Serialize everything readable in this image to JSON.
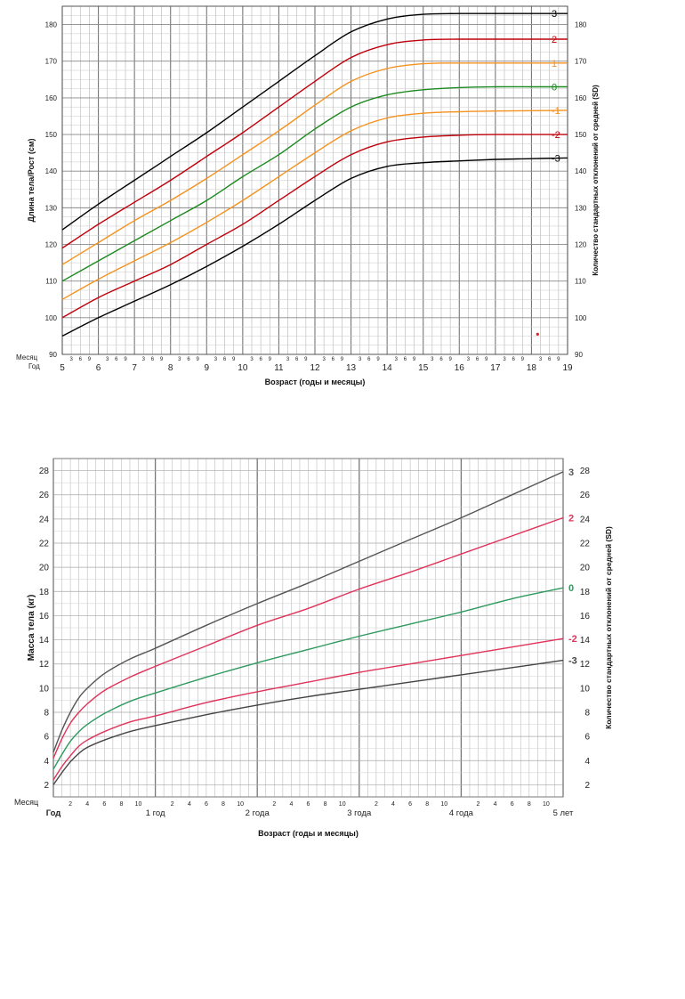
{
  "chart_data": [
    {
      "type": "line",
      "ylabel_left": "Длина тела/Рост (см)",
      "ylabel_right": "Количество стандартных отклонений от средней (SD)",
      "xlabel": "Возраст (годы и месяцы)",
      "row_label_month": "Месяц",
      "row_label_year": "Год",
      "month_ticks": [
        "3",
        "6",
        "9"
      ],
      "xlim": [
        5,
        19
      ],
      "ylim": [
        90,
        185
      ],
      "year_labels": [
        "5",
        "6",
        "7",
        "8",
        "9",
        "10",
        "11",
        "12",
        "13",
        "14",
        "15",
        "16",
        "17",
        "18",
        "19"
      ],
      "y_ticks": [
        90,
        100,
        110,
        120,
        130,
        140,
        150,
        160,
        170,
        180
      ],
      "grid": true,
      "x": [
        5,
        6,
        7,
        8,
        9,
        10,
        11,
        12,
        13,
        14,
        15,
        16,
        17,
        18,
        19
      ],
      "series": [
        {
          "name": "3",
          "color": "#000000",
          "values": [
            124,
            131,
            137.5,
            144,
            150.5,
            157.5,
            164.5,
            171.5,
            178,
            181.5,
            182.8,
            183,
            183,
            183,
            183
          ]
        },
        {
          "name": "2",
          "color": "#c0000a",
          "values": [
            119,
            125.5,
            131.5,
            137.5,
            144,
            150.5,
            157.5,
            164.5,
            171,
            174.5,
            175.8,
            176,
            176,
            176,
            176
          ]
        },
        {
          "name": "1",
          "color": "#f5921e",
          "values": [
            114.5,
            120.5,
            126.5,
            132,
            138,
            144.5,
            151,
            158,
            164.5,
            168,
            169.3,
            169.5,
            169.5,
            169.5,
            169.5
          ]
        },
        {
          "name": "0",
          "color": "#1c8a1e",
          "values": [
            110,
            115.5,
            121,
            126.5,
            132,
            138.5,
            144.5,
            151.5,
            157.5,
            160.8,
            162.2,
            162.8,
            163,
            163,
            163
          ]
        },
        {
          "name": "-1",
          "color": "#f5921e",
          "values": [
            105,
            110.5,
            115.5,
            120.5,
            126,
            132,
            138.5,
            145,
            151,
            154.5,
            155.8,
            156.2,
            156.4,
            156.5,
            156.6
          ]
        },
        {
          "name": "-2",
          "color": "#c0000a",
          "values": [
            100,
            105.5,
            110,
            114.5,
            120,
            125.5,
            132,
            138.5,
            144.5,
            148,
            149.3,
            149.8,
            150,
            150,
            150
          ]
        },
        {
          "name": "-3",
          "color": "#000000",
          "values": [
            95,
            100,
            104.5,
            109,
            114,
            119.5,
            125.5,
            132,
            138,
            141.3,
            142.3,
            142.8,
            143.2,
            143.4,
            143.6
          ]
        }
      ],
      "marker": {
        "x": 18.17,
        "y": 95.5,
        "color": "#e51c1c"
      }
    },
    {
      "type": "line",
      "ylabel_left": "Масса тела (кг)",
      "ylabel_right": "Количество стандартных отклонений от средней (SD)",
      "xlabel": "Возраст (годы и месяцы)",
      "row_label_month": "Месяц",
      "row_label_year": "Год",
      "month_ticks": [
        "2",
        "4",
        "6",
        "8",
        "10"
      ],
      "xlim": [
        0,
        60
      ],
      "ylim": [
        1,
        29
      ],
      "x_labels": [
        {
          "month": 0,
          "label": "Год"
        },
        {
          "month": 12,
          "label": "1 год"
        },
        {
          "month": 24,
          "label": "2 года"
        },
        {
          "month": 36,
          "label": "3 года"
        },
        {
          "month": 48,
          "label": "4 года"
        },
        {
          "month": 60,
          "label": "5 лет"
        }
      ],
      "y_ticks": [
        2,
        4,
        6,
        8,
        10,
        12,
        14,
        16,
        18,
        20,
        22,
        24,
        26,
        28
      ],
      "grid": true,
      "x": [
        0,
        1,
        2,
        3,
        4,
        6,
        9,
        12,
        18,
        24,
        30,
        36,
        42,
        48,
        54,
        60
      ],
      "series": [
        {
          "name": "3",
          "color": "#555555",
          "values": [
            4.7,
            6.5,
            8.0,
            9.2,
            10.0,
            11.2,
            12.4,
            13.3,
            15.2,
            17.0,
            18.7,
            20.5,
            22.3,
            24.1,
            26.0,
            27.9
          ]
        },
        {
          "name": "2",
          "color": "#e0335a",
          "values": [
            4.2,
            5.8,
            7.1,
            8.0,
            8.7,
            9.8,
            10.9,
            11.8,
            13.5,
            15.2,
            16.6,
            18.2,
            19.6,
            21.1,
            22.6,
            24.1
          ]
        },
        {
          "name": "0",
          "color": "#2e9a5e",
          "values": [
            3.3,
            4.5,
            5.6,
            6.4,
            7.0,
            7.9,
            8.9,
            9.6,
            10.9,
            12.1,
            13.2,
            14.3,
            15.3,
            16.3,
            17.4,
            18.3
          ]
        },
        {
          "name": "-2",
          "color": "#e0335a",
          "values": [
            2.4,
            3.5,
            4.4,
            5.2,
            5.7,
            6.4,
            7.2,
            7.7,
            8.8,
            9.7,
            10.5,
            11.3,
            12.0,
            12.7,
            13.4,
            14.1
          ]
        },
        {
          "name": "-3",
          "color": "#444444",
          "values": [
            2.0,
            3.0,
            3.9,
            4.6,
            5.1,
            5.7,
            6.4,
            6.9,
            7.8,
            8.6,
            9.3,
            9.9,
            10.5,
            11.1,
            11.7,
            12.3
          ]
        }
      ]
    }
  ]
}
